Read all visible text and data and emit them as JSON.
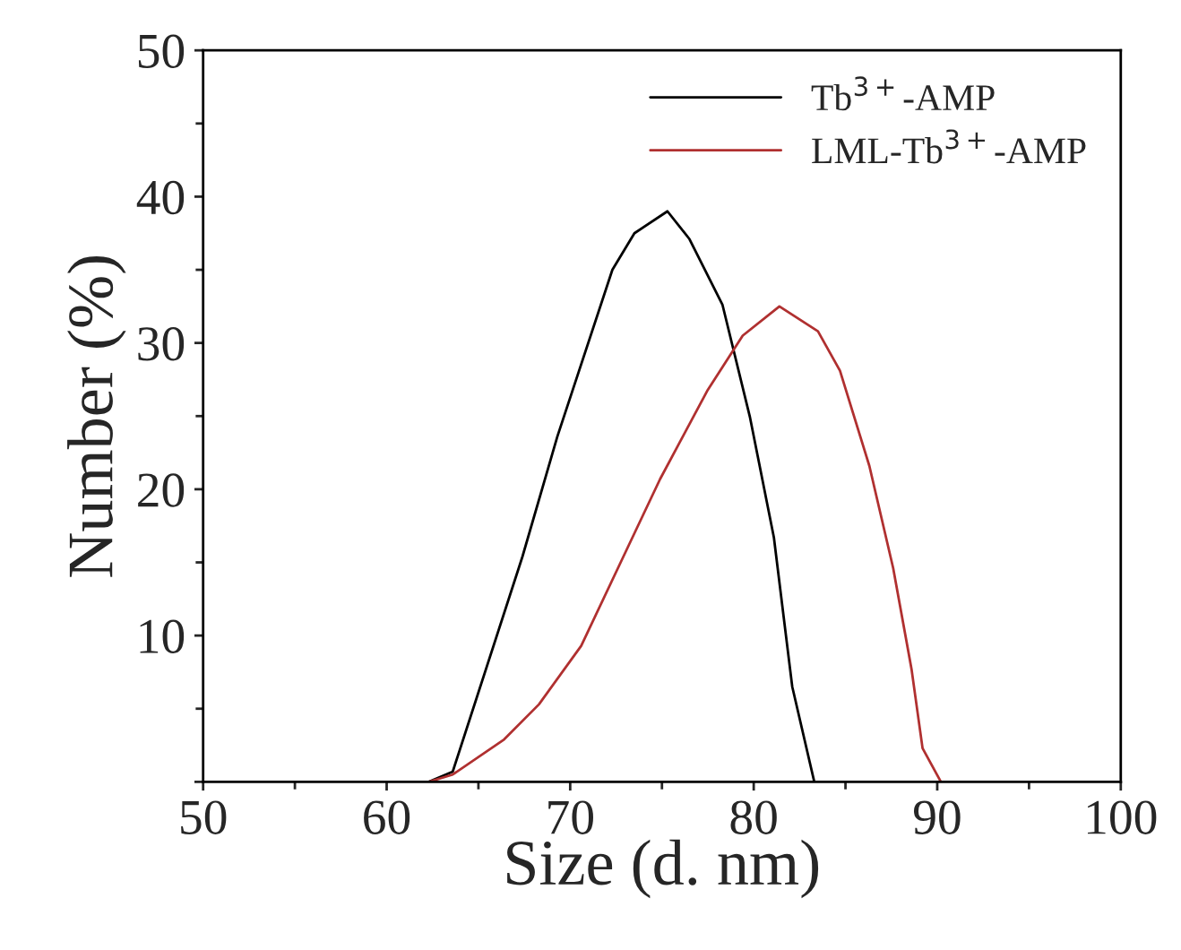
{
  "chart_data": {
    "type": "line",
    "xlabel": "Size (d. nm)",
    "ylabel": "Number (%)",
    "xlim": [
      50,
      100
    ],
    "xticks": [
      50,
      60,
      70,
      80,
      90,
      100
    ],
    "ylim": [
      0,
      50
    ],
    "yticks": [
      {
        "value": 0,
        "label": null
      },
      10,
      20,
      30,
      40,
      50
    ],
    "grid": false,
    "legend": "top right",
    "marker": "none",
    "line_style": "solid",
    "series": [
      {
        "name": "Tb$^{3+}$-AMP",
        "color": "#000000",
        "x": [
          50,
          62.3,
          63.6,
          65.1,
          67.4,
          69.3,
          72.3,
          73.5,
          75.3,
          76.5,
          78.3,
          79.8,
          81.1,
          82.1,
          83.3,
          96
        ],
        "values": [
          0,
          0,
          0.7,
          6.5,
          15.4,
          23.6,
          35.0,
          37.5,
          39.0,
          37.1,
          32.6,
          24.9,
          16.7,
          6.5,
          0,
          0
        ]
      },
      {
        "name": "LML-Tb$^{3+}$-AMP",
        "color": "#b03030",
        "x": [
          50,
          62.3,
          63.6,
          66.4,
          68.3,
          70.6,
          72.9,
          74.9,
          77.5,
          79.4,
          81.4,
          83.5,
          84.7,
          86.3,
          87.6,
          88.6,
          89.2,
          90.2,
          95
        ],
        "values": [
          0,
          0,
          0.5,
          2.9,
          5.3,
          9.3,
          15.4,
          20.7,
          26.8,
          30.5,
          32.5,
          30.8,
          28.1,
          21.6,
          14.6,
          7.7,
          2.3,
          0,
          0
        ]
      }
    ]
  }
}
